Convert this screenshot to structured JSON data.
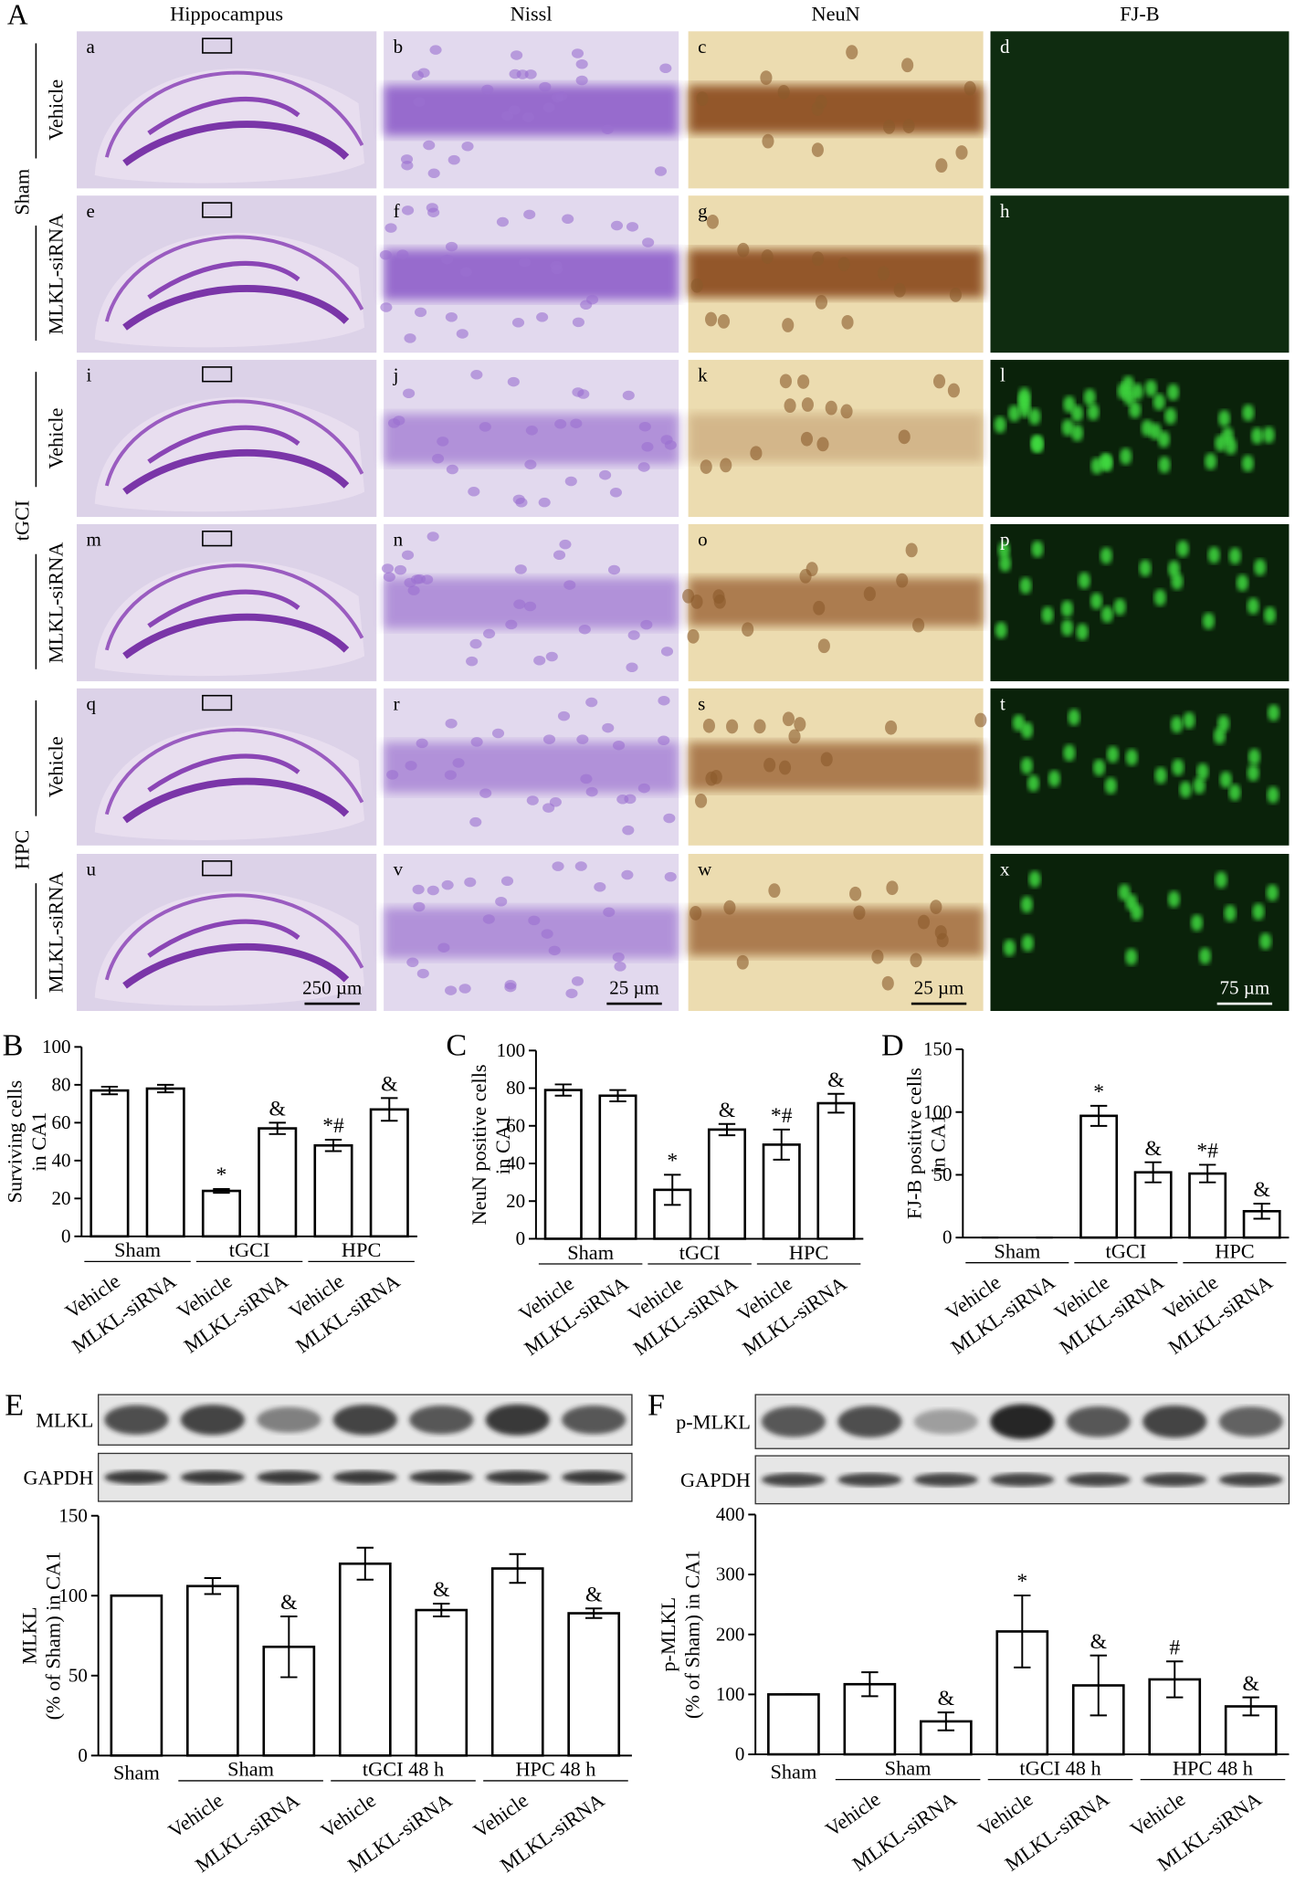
{
  "figure": {
    "panel_label": "A",
    "column_headers": [
      "Hippocampus",
      "Nissl",
      "NeuN",
      "FJ-B"
    ],
    "row_groups": [
      {
        "name": "Sham",
        "rows": [
          "Vehicle",
          "MLKL-siRNA"
        ]
      },
      {
        "name": "tGCI",
        "rows": [
          "Vehicle",
          "MLKL-siRNA"
        ]
      },
      {
        "name": "HPC",
        "rows": [
          "Vehicle",
          "MLKL-siRNA"
        ]
      }
    ],
    "panel_letters": [
      "a",
      "b",
      "c",
      "d",
      "e",
      "f",
      "g",
      "h",
      "i",
      "j",
      "k",
      "l",
      "m",
      "n",
      "o",
      "p",
      "q",
      "r",
      "s",
      "t",
      "u",
      "v",
      "w",
      "x"
    ],
    "scale_bars": [
      "250 µm",
      "25 µm",
      "25 µm",
      "75 µm"
    ]
  },
  "chart_data": [
    {
      "type": "bar",
      "panel_label": "B",
      "ylabel": [
        "Surviving cells",
        "in CA1"
      ],
      "categories": [
        "Vehicle",
        "MLKL-siRNA",
        "Vehicle",
        "MLKL-siRNA",
        "Vehicle",
        "MLKL-siRNA"
      ],
      "x_groups": [
        "Sham",
        "Sham",
        "tGCI",
        "tGCI",
        "HPC",
        "HPC"
      ],
      "values": [
        77,
        78,
        24,
        57,
        48,
        67
      ],
      "errors": [
        2,
        2,
        1,
        3,
        3,
        6
      ],
      "annotations": [
        null,
        null,
        "*",
        "&",
        "*#",
        "&"
      ],
      "ylim": [
        0,
        100
      ],
      "yticks": [
        0,
        20,
        40,
        60,
        80,
        100
      ],
      "color": "#ffffff"
    },
    {
      "type": "bar",
      "panel_label": "C",
      "ylabel": [
        "NeuN positive cells",
        "in CA1"
      ],
      "categories": [
        "Vehicle",
        "MLKL-siRNA",
        "Vehicle",
        "MLKL-siRNA",
        "Vehicle",
        "MLKL-siRNA"
      ],
      "x_groups": [
        "Sham",
        "Sham",
        "tGCI",
        "tGCI",
        "HPC",
        "HPC"
      ],
      "values": [
        79,
        76,
        26,
        58,
        50,
        72
      ],
      "errors": [
        3,
        3,
        8,
        3,
        8,
        5
      ],
      "annotations": [
        null,
        null,
        "*",
        "&",
        "*#",
        "&"
      ],
      "ylim": [
        0,
        100
      ],
      "yticks": [
        0,
        20,
        40,
        60,
        80,
        100
      ],
      "color": "#ffffff"
    },
    {
      "type": "bar",
      "panel_label": "D",
      "ylabel": [
        "FJ-B positive cells",
        "in CA1"
      ],
      "categories": [
        "Vehicle",
        "MLKL-siRNA",
        "Vehicle",
        "MLKL-siRNA",
        "Vehicle",
        "MLKL-siRNA"
      ],
      "x_groups": [
        "Sham",
        "Sham",
        "tGCI",
        "tGCI",
        "HPC",
        "HPC"
      ],
      "values": [
        0,
        0,
        97,
        52,
        51,
        21
      ],
      "errors": [
        0,
        0,
        8,
        8,
        7,
        6
      ],
      "annotations": [
        null,
        null,
        "*",
        "&",
        "*#",
        "&"
      ],
      "ylim": [
        0,
        150
      ],
      "yticks": [
        0,
        50,
        100,
        150
      ],
      "color": "#ffffff"
    },
    {
      "type": "bar",
      "panel_label": "E",
      "ylabel": [
        "MLKL",
        "(% of Sham) in CA1"
      ],
      "blot_labels": [
        "MLKL",
        "GAPDH"
      ],
      "categories": [
        "Sham",
        "Vehicle",
        "MLKL-siRNA",
        "Vehicle",
        "MLKL-siRNA",
        "Vehicle",
        "MLKL-siRNA"
      ],
      "x_groups": [
        null,
        "Sham",
        "Sham",
        "tGCI 48 h",
        "tGCI 48 h",
        "HPC 48 h",
        "HPC 48 h"
      ],
      "values": [
        100,
        106,
        68,
        120,
        91,
        117,
        89
      ],
      "errors": [
        0,
        5,
        19,
        10,
        4,
        9,
        3
      ],
      "annotations": [
        null,
        null,
        "&",
        null,
        "&",
        null,
        "&"
      ],
      "ylim": [
        0,
        150
      ],
      "yticks": [
        0,
        50,
        100,
        150
      ],
      "color": "#ffffff"
    },
    {
      "type": "bar",
      "panel_label": "F",
      "ylabel": [
        "p-MLKL",
        "(% of Sham) in CA1"
      ],
      "blot_labels": [
        "p-MLKL",
        "GAPDH"
      ],
      "categories": [
        "Sham",
        "Vehicle",
        "MLKL-siRNA",
        "Vehicle",
        "MLKL-siRNA",
        "Vehicle",
        "MLKL-siRNA"
      ],
      "x_groups": [
        null,
        "Sham",
        "Sham",
        "tGCI 48 h",
        "tGCI 48 h",
        "HPC 48 h",
        "HPC 48 h"
      ],
      "values": [
        100,
        117,
        55,
        205,
        115,
        125,
        80
      ],
      "errors": [
        0,
        20,
        15,
        60,
        50,
        30,
        15
      ],
      "annotations": [
        null,
        null,
        "&",
        "*",
        "&",
        "#",
        "&"
      ],
      "ylim": [
        0,
        400
      ],
      "yticks": [
        0,
        100,
        200,
        300,
        400
      ],
      "color": "#ffffff"
    }
  ]
}
